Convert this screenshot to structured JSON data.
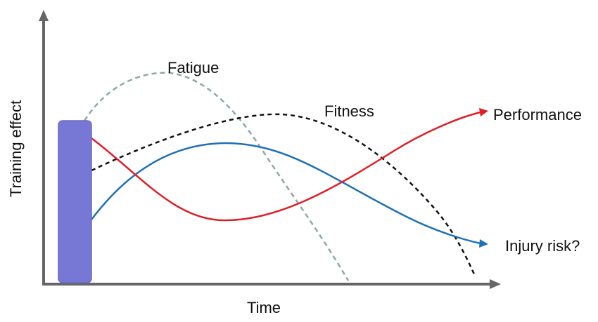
{
  "axes": {
    "xlabel": "Time",
    "ylabel": "Training effect"
  },
  "curves": [
    {
      "key": "fatigue",
      "label": "Fatigue",
      "color": "#8fa8a8",
      "dash": "dashed"
    },
    {
      "key": "fitness",
      "label": "Fitness",
      "color": "#111111",
      "dash": "dashed"
    },
    {
      "key": "performance",
      "label": "Performance",
      "color": "#e01e26",
      "dash": "solid"
    },
    {
      "key": "injury",
      "label": "Injury risk?",
      "color": "#1f70b4",
      "dash": "solid"
    }
  ],
  "colors": {
    "axis": "#666666",
    "stimulus_block_fill": "#7777d6",
    "stimulus_block_stroke": "#6a6ac4"
  }
}
